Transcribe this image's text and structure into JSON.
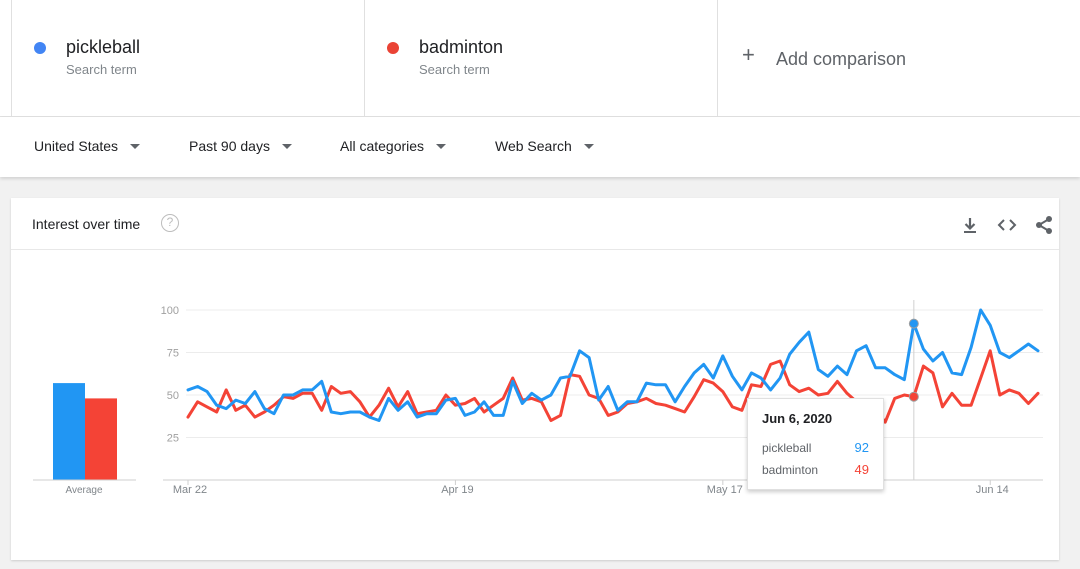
{
  "terms": [
    {
      "name": "pickleball",
      "sub": "Search term",
      "color": "#4285f4"
    },
    {
      "name": "badminton",
      "sub": "Search term",
      "color": "#ea4335"
    }
  ],
  "add_comparison": "Add comparison",
  "filters": [
    "United States",
    "Past 90 days",
    "All categories",
    "Web Search"
  ],
  "card": {
    "title": "Interest over time",
    "help": "?"
  },
  "tooltip": {
    "date": "Jun 6, 2020",
    "pickleball": "92",
    "badminton": "49"
  },
  "chart_data": {
    "type": "line",
    "ylim": [
      0,
      100
    ],
    "yticks": [
      25,
      50,
      75,
      100
    ],
    "xtick_labels": [
      {
        "label": "Mar 22",
        "index": 0
      },
      {
        "label": "Apr 19",
        "index": 28
      },
      {
        "label": "May 17",
        "index": 56
      },
      {
        "label": "Jun 14",
        "index": 84
      }
    ],
    "highlight_index": 76,
    "series": [
      {
        "name": "pickleball",
        "color": "#2196f3",
        "values": [
          53,
          55,
          52,
          44,
          42,
          47,
          45,
          52,
          42,
          39,
          50,
          50,
          53,
          53,
          58,
          40,
          39,
          40,
          40,
          37,
          35,
          48,
          41,
          46,
          37,
          39,
          39,
          47,
          48,
          38,
          40,
          46,
          38,
          38,
          58,
          45,
          51,
          47,
          50,
          60,
          61,
          76,
          72,
          47,
          55,
          41,
          46,
          46,
          57,
          56,
          56,
          46,
          55,
          63,
          68,
          60,
          73,
          61,
          53,
          63,
          60,
          53,
          60,
          74,
          81,
          87,
          65,
          61,
          67,
          62,
          76,
          79,
          66,
          66,
          62,
          59,
          92,
          77,
          70,
          75,
          63,
          62,
          78,
          100,
          91,
          75,
          72,
          76,
          80,
          76
        ]
      },
      {
        "name": "badminton",
        "color": "#f44336",
        "values": [
          37,
          46,
          43,
          40,
          53,
          41,
          44,
          37,
          40,
          44,
          49,
          48,
          51,
          51,
          41,
          55,
          51,
          52,
          46,
          37,
          44,
          54,
          43,
          52,
          39,
          40,
          41,
          50,
          44,
          45,
          48,
          40,
          44,
          48,
          60,
          47,
          48,
          46,
          35,
          38,
          62,
          61,
          50,
          48,
          38,
          40,
          45,
          46,
          48,
          45,
          44,
          42,
          40,
          49,
          59,
          57,
          52,
          43,
          41,
          56,
          55,
          68,
          70,
          56,
          52,
          54,
          50,
          51,
          58,
          51,
          46,
          47,
          42,
          34,
          48,
          50,
          49,
          67,
          63,
          43,
          51,
          44,
          44,
          60,
          76,
          50,
          53,
          51,
          45,
          51
        ]
      }
    ],
    "average": {
      "label": "Average",
      "values": [
        57,
        48
      ]
    }
  }
}
